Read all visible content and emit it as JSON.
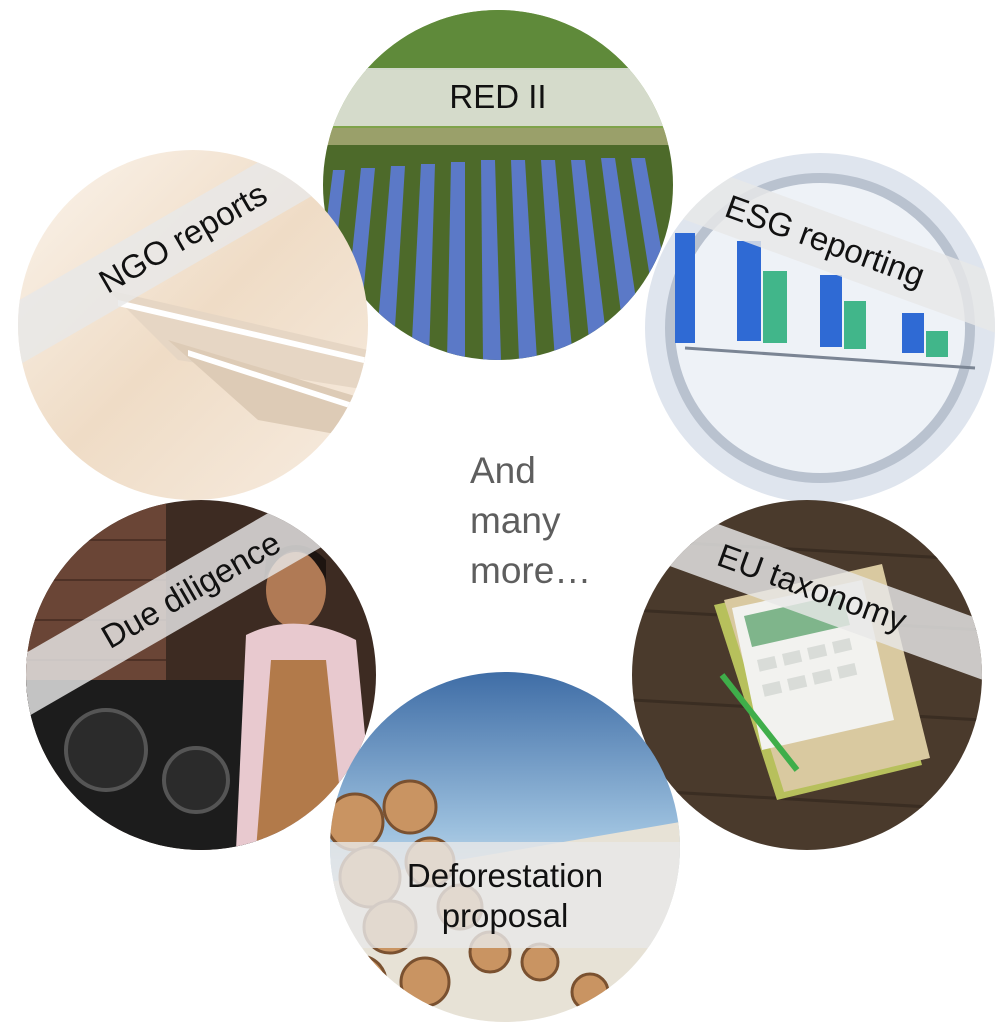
{
  "topics": {
    "red": "RED II",
    "esg": "ESG reporting",
    "ngo": "NGO reports",
    "eu": "EU taxonomy",
    "due": "Due diligence",
    "deforestation_line1": "Deforestation",
    "deforestation_line2": "proposal"
  },
  "center": {
    "line1": "And",
    "line2": "many",
    "line3": "more…"
  },
  "images": {
    "red": "solar-farm-photo",
    "esg": "magnified-bar-chart-photo",
    "ngo": "paper-stack-photo",
    "eu": "calculator-notebooks-photo",
    "due": "factory-worker-photo",
    "deforestation": "log-pile-photo"
  }
}
